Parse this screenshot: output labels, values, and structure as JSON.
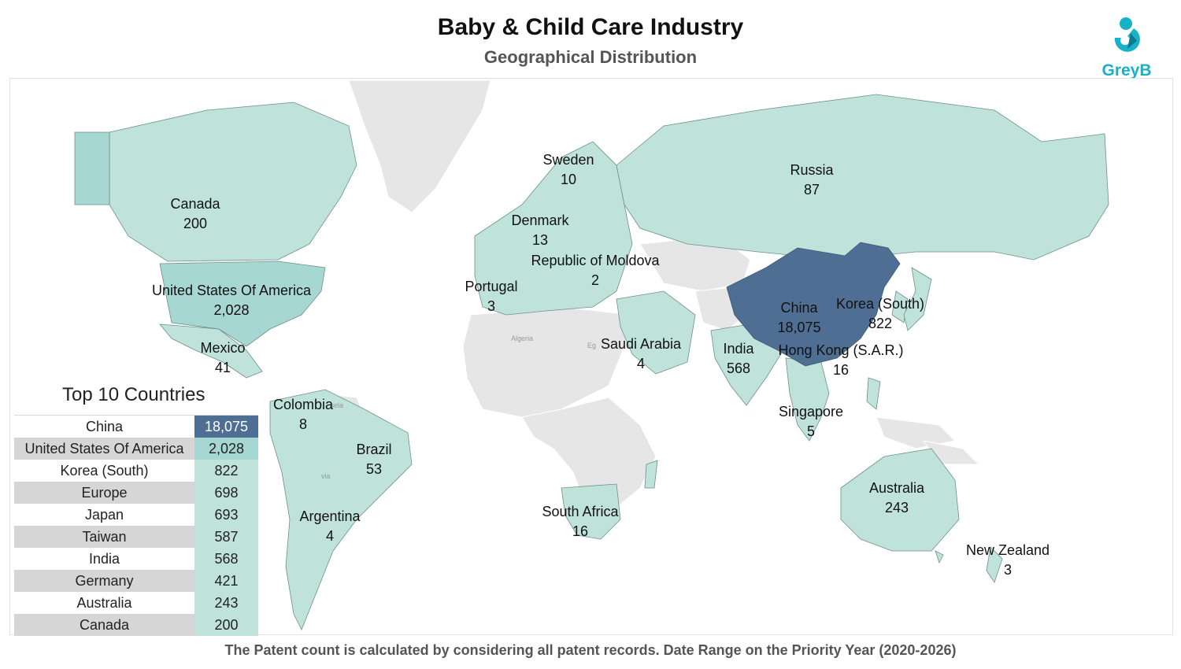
{
  "header": {
    "title": "Baby & Child Care Industry",
    "subtitle": "Geographical Distribution"
  },
  "logo": {
    "text": "GreyB",
    "color": "#16b3c8"
  },
  "colors": {
    "scale_low": "#bfe3da",
    "scale_mid": "#a6d7d3",
    "scale_high": "#4e6f93",
    "no_data": "#e6e6e6",
    "ocean": "#ffffff"
  },
  "map_labels": [
    {
      "id": "canada",
      "country": "Canada",
      "count": "200"
    },
    {
      "id": "usa",
      "country": "United States Of America",
      "count": "2,028"
    },
    {
      "id": "mexico",
      "country": "Mexico",
      "count": "41"
    },
    {
      "id": "colombia",
      "country": "Colombia",
      "count": "8"
    },
    {
      "id": "brazil",
      "country": "Brazil",
      "count": "53"
    },
    {
      "id": "argentina",
      "country": "Argentina",
      "count": "4"
    },
    {
      "id": "sweden",
      "country": "Sweden",
      "count": "10"
    },
    {
      "id": "denmark",
      "country": "Denmark",
      "count": "13"
    },
    {
      "id": "moldova",
      "country": "Republic of Moldova",
      "count": "2"
    },
    {
      "id": "portugal",
      "country": "Portugal",
      "count": "3"
    },
    {
      "id": "russia",
      "country": "Russia",
      "count": "87"
    },
    {
      "id": "saudi",
      "country": "Saudi Arabia",
      "count": "4"
    },
    {
      "id": "india",
      "country": "India",
      "count": "568"
    },
    {
      "id": "china",
      "country": "China",
      "count": "18,075"
    },
    {
      "id": "korea",
      "country": "Korea (South)",
      "count": "822"
    },
    {
      "id": "hongkong",
      "country": "Hong Kong (S.A.R.)",
      "count": "16"
    },
    {
      "id": "singapore",
      "country": "Singapore",
      "count": "5"
    },
    {
      "id": "southafrica",
      "country": "South Africa",
      "count": "16"
    },
    {
      "id": "australia",
      "country": "Australia",
      "count": "243"
    },
    {
      "id": "newzealand",
      "country": "New Zealand",
      "count": "3"
    }
  ],
  "faint_labels": {
    "algeria": "Algeria",
    "egypt": "Eg",
    "venezuela": "uela",
    "bolivia": "via"
  },
  "top10": {
    "title": "Top 10 Countries",
    "rows": [
      {
        "country": "China",
        "value": "18,075"
      },
      {
        "country": "United States Of America",
        "value": "2,028"
      },
      {
        "country": "Korea (South)",
        "value": "822"
      },
      {
        "country": "Europe",
        "value": "698"
      },
      {
        "country": "Japan",
        "value": "693"
      },
      {
        "country": "Taiwan",
        "value": "587"
      },
      {
        "country": "India",
        "value": "568"
      },
      {
        "country": "Germany",
        "value": "421"
      },
      {
        "country": "Australia",
        "value": "243"
      },
      {
        "country": "Canada",
        "value": "200"
      }
    ],
    "value_colors": [
      "#4e6f93",
      "#a6d7d3",
      "#bfe3da",
      "#bfe3da",
      "#bfe3da",
      "#bfe3da",
      "#bfe3da",
      "#bfe3da",
      "#bfe3da",
      "#bfe3da"
    ],
    "value_text_colors": [
      "#ffffff",
      "#222222",
      "#222222",
      "#222222",
      "#222222",
      "#222222",
      "#222222",
      "#222222",
      "#222222",
      "#222222"
    ]
  },
  "footnote": "The Patent count is calculated by considering all patent records. Date Range on the Priority Year (2020-2026)"
}
